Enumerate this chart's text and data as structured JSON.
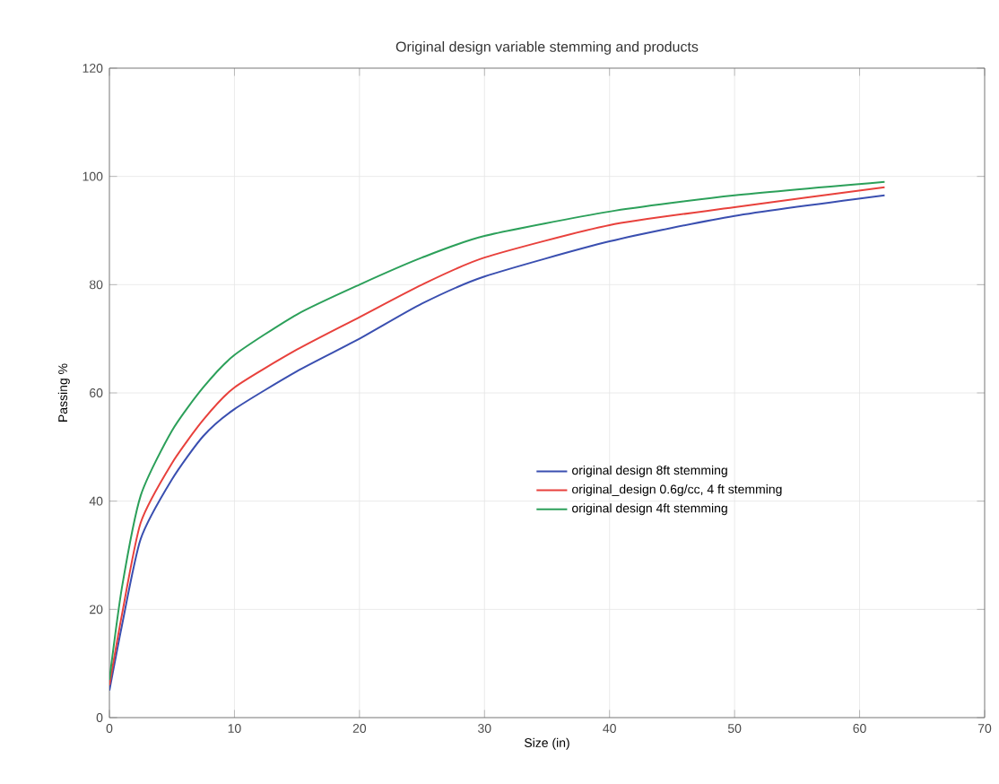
{
  "chart_data": {
    "type": "line",
    "title": "Original design variable stemming and products",
    "xlabel": "Size (in)",
    "ylabel": "Passing %",
    "xlim": [
      0,
      70
    ],
    "xticks": [
      0,
      10,
      20,
      30,
      40,
      50,
      60,
      70
    ],
    "ylim": [
      0,
      120
    ],
    "yticks": [
      0,
      20,
      40,
      60,
      80,
      100,
      120
    ],
    "grid": true,
    "legend": "center",
    "line_style": "solid",
    "marker": "none",
    "series": [
      {
        "name": "original design 8ft stemming",
        "color": "#3a4fb0",
        "x": [
          0,
          1,
          2.5,
          5,
          7.5,
          10,
          15,
          20,
          25,
          30,
          40,
          50,
          62
        ],
        "values": [
          5,
          17,
          33,
          44,
          52,
          57,
          64,
          70,
          76.5,
          81.5,
          88,
          92.7,
          96.5
        ]
      },
      {
        "name": "original_design 0.6g/cc, 4 ft stemming",
        "color": "#e8413c",
        "x": [
          0,
          1,
          2.5,
          5,
          7.5,
          10,
          15,
          20,
          25,
          30,
          40,
          50,
          62
        ],
        "values": [
          6,
          19,
          36,
          47,
          55,
          61,
          68,
          74,
          80,
          85,
          91,
          94.3,
          98
        ]
      },
      {
        "name": "original design 4ft stemming",
        "color": "#2ca05a",
        "x": [
          0,
          1,
          2.5,
          5,
          7.5,
          10,
          15,
          20,
          25,
          30,
          40,
          50,
          62
        ],
        "values": [
          7,
          24,
          41,
          53,
          61,
          67,
          74.5,
          80,
          85,
          89,
          93.5,
          96.5,
          99
        ]
      }
    ]
  }
}
